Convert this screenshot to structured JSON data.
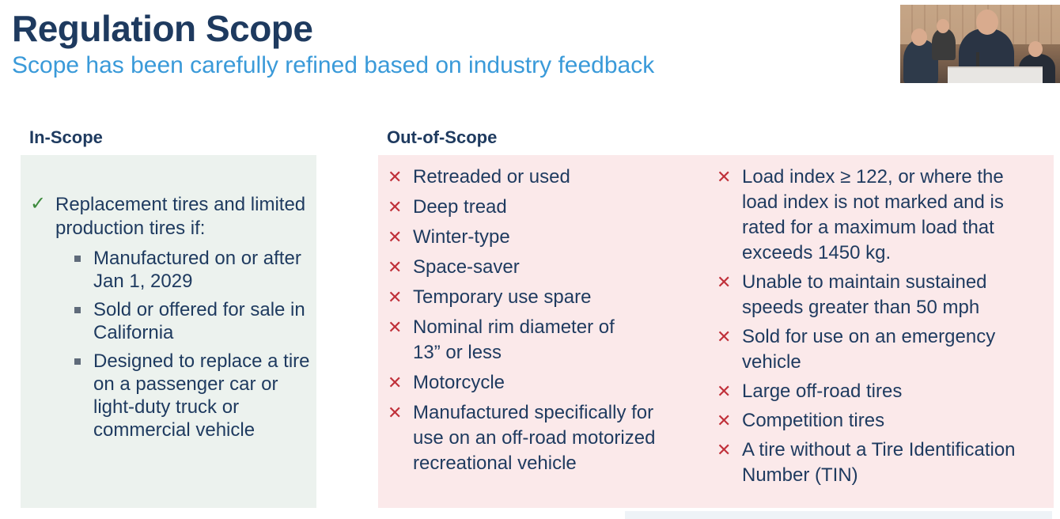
{
  "slide": {
    "title": "Regulation Scope",
    "subtitle": "Scope has been carefully refined based on industry feedback"
  },
  "in_scope": {
    "heading": "In-Scope",
    "check_icon": "check-icon",
    "main_item": "Replacement tires and limited production tires if:",
    "sub_items": [
      "Manufactured on or after Jan 1, 2029",
      "Sold or offered for sale in California",
      "Designed to replace a tire on a passenger car or light-duty truck or commercial vehicle"
    ]
  },
  "out_of_scope": {
    "heading": "Out-of-Scope",
    "x_icon": "x-icon",
    "column1": [
      "Retreaded or used",
      "Deep tread",
      "Winter-type",
      "Space-saver",
      "Temporary use spare",
      "Nominal rim diameter of 13” or less",
      "Motorcycle",
      "Manufactured specifically for use on an off-road motorized recreational vehicle"
    ],
    "column2": [
      "Load index ≥ 122, or where the load index is not marked and is rated for a maximum load that exceeds 1450 kg.",
      "Unable to maintain sustained speeds greater than 50 mph",
      "Sold for use on an emergency vehicle",
      "Large off-road tires",
      "Competition tires",
      "A tire without a Tire Identification Number (TIN)"
    ]
  },
  "colors": {
    "title": "#1e3a5f",
    "subtitle": "#3a9ad9",
    "in_scope_panel": "#ecf2ee",
    "out_scope_panel": "#fbe9ea",
    "check": "#3c8a3c",
    "x_mark": "#c0303a"
  }
}
